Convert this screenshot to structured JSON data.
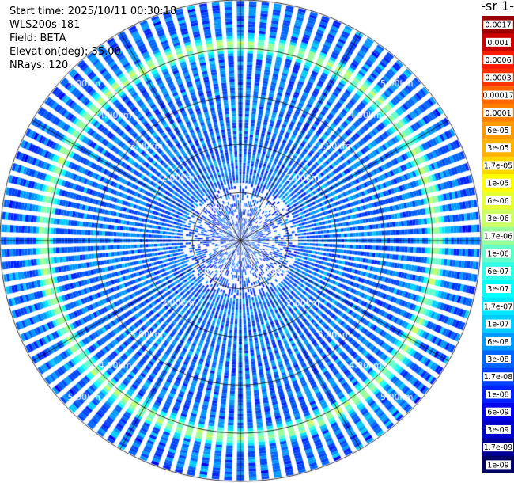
{
  "header": {
    "start_time": "Start time: 2025/10/11 00:30:18",
    "instrument": "WLS200s-181",
    "field": "Field: BETA",
    "elevation": "Elevation(deg): 35.00",
    "nrays": "NRays: 120"
  },
  "colorbar": {
    "title_fragment": "-1 sr-",
    "labels": [
      "0.0017",
      "0.001",
      "0.0006",
      "0.0003",
      "0.00017",
      "0.0001",
      "6e-05",
      "3e-05",
      "1.7e-05",
      "1e-05",
      "6e-06",
      "3e-06",
      "1.7e-06",
      "1e-06",
      "6e-07",
      "3e-07",
      "1.7e-07",
      "1e-07",
      "6e-08",
      "3e-08",
      "1.7e-08",
      "1e-08",
      "6e-09",
      "3e-09",
      "1.7e-09",
      "1e-09"
    ],
    "colors": [
      "#990000",
      "#cc0000",
      "#ff1a00",
      "#ff3300",
      "#ff6600",
      "#ff8000",
      "#ff9900",
      "#ffb300",
      "#ffd700",
      "#ffff00",
      "#e6ff33",
      "#ccff66",
      "#99ff99",
      "#66ffcc",
      "#33ffe6",
      "#00ffff",
      "#00e6ff",
      "#00ccff",
      "#0099ff",
      "#0066ff",
      "#0044ff",
      "#0022ff",
      "#0000ee",
      "#0000cc",
      "#000099",
      "#000066"
    ]
  },
  "chart_data": {
    "type": "heatmap",
    "projection": "polar-ppi",
    "field": "BETA",
    "elevation_deg": 35.0,
    "n_rays": 120,
    "range_rings_km": [
      1,
      2,
      3,
      4,
      5
    ],
    "ring_labels": [
      "1.00km",
      "2.00km",
      "3.00km",
      "4.00km",
      "5.00km"
    ],
    "max_range_km": 5.0,
    "azimuth_lines_deg": [
      0,
      30,
      60,
      90,
      120,
      150,
      180,
      210,
      240,
      270,
      300,
      330
    ],
    "colorscale": "log",
    "value_range": [
      1e-09,
      0.0017
    ],
    "features": {
      "background_beta": 3e-08,
      "enhanced_band_range_km": [
        4.0,
        4.15
      ],
      "enhanced_band_beta": 1.7e-06
    }
  }
}
